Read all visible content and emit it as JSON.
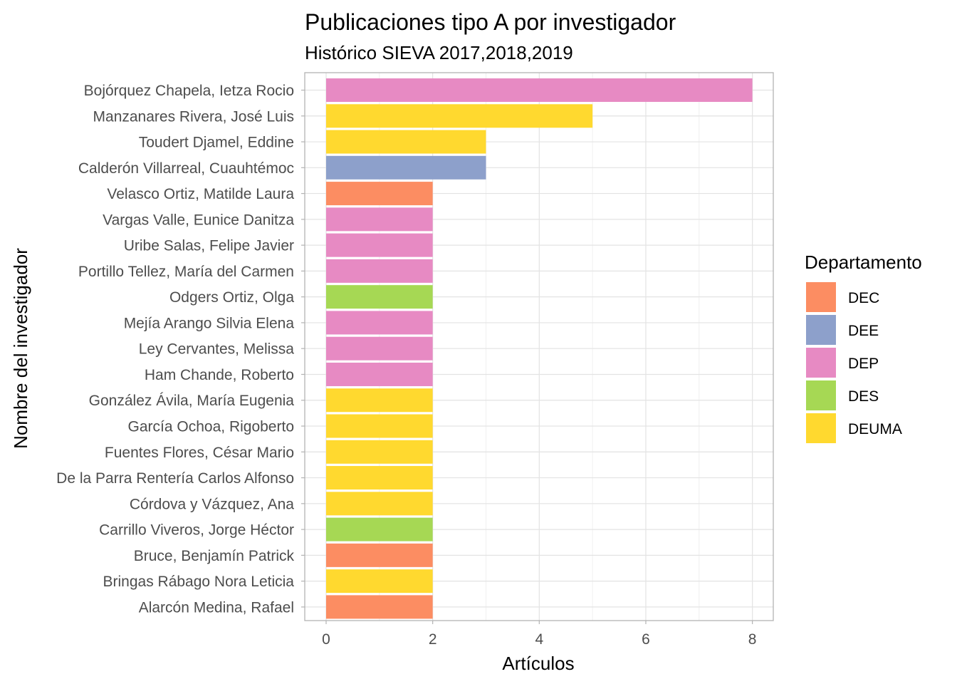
{
  "chart_data": {
    "type": "bar",
    "orientation": "horizontal",
    "title": "Publicaciones tipo A por investigador",
    "subtitle": "Histórico SIEVA 2017,2018,2019",
    "xlabel": "Artículos",
    "ylabel": "Nombre del investigador",
    "xlim": [
      0,
      8.4
    ],
    "x_ticks": [
      "0",
      "2",
      "4",
      "6",
      "8"
    ],
    "grid": true,
    "legend": {
      "title": "Departamento",
      "position": "right",
      "items": [
        {
          "label": "DEC",
          "color": "#fc8d62"
        },
        {
          "label": "DEE",
          "color": "#8da0cb"
        },
        {
          "label": "DEP",
          "color": "#e78ac3"
        },
        {
          "label": "DES",
          "color": "#a6d854"
        },
        {
          "label": "DEUMA",
          "color": "#ffd92f"
        }
      ]
    },
    "bars": [
      {
        "name": "Bojórquez Chapela, Ietza Rocio",
        "value": 8,
        "dept": "DEP"
      },
      {
        "name": "Manzanares Rivera, José Luis",
        "value": 5,
        "dept": "DEUMA"
      },
      {
        "name": "Toudert Djamel, Eddine",
        "value": 3,
        "dept": "DEUMA"
      },
      {
        "name": "Calderón Villarreal, Cuauhtémoc",
        "value": 3,
        "dept": "DEE"
      },
      {
        "name": "Velasco Ortiz, Matilde Laura",
        "value": 2,
        "dept": "DEC"
      },
      {
        "name": "Vargas Valle, Eunice Danitza",
        "value": 2,
        "dept": "DEP"
      },
      {
        "name": "Uribe Salas, Felipe Javier",
        "value": 2,
        "dept": "DEP"
      },
      {
        "name": "Portillo Tellez, María del Carmen",
        "value": 2,
        "dept": "DEP"
      },
      {
        "name": "Odgers Ortiz, Olga",
        "value": 2,
        "dept": "DES"
      },
      {
        "name": "Mejía Arango Silvia Elena",
        "value": 2,
        "dept": "DEP"
      },
      {
        "name": "Ley Cervantes, Melissa",
        "value": 2,
        "dept": "DEP"
      },
      {
        "name": "Ham Chande, Roberto",
        "value": 2,
        "dept": "DEP"
      },
      {
        "name": "González Ávila, María Eugenia",
        "value": 2,
        "dept": "DEUMA"
      },
      {
        "name": "García Ochoa, Rigoberto",
        "value": 2,
        "dept": "DEUMA"
      },
      {
        "name": "Fuentes Flores, César Mario",
        "value": 2,
        "dept": "DEUMA"
      },
      {
        "name": "De la Parra Rentería Carlos Alfonso",
        "value": 2,
        "dept": "DEUMA"
      },
      {
        "name": "Córdova y Vázquez, Ana",
        "value": 2,
        "dept": "DEUMA"
      },
      {
        "name": "Carrillo Viveros, Jorge Héctor",
        "value": 2,
        "dept": "DES"
      },
      {
        "name": "Bruce, Benjamín Patrick",
        "value": 2,
        "dept": "DEC"
      },
      {
        "name": "Bringas Rábago Nora Leticia",
        "value": 2,
        "dept": "DEUMA"
      },
      {
        "name": "Alarcón Medina, Rafael",
        "value": 2,
        "dept": "DEC"
      }
    ]
  }
}
